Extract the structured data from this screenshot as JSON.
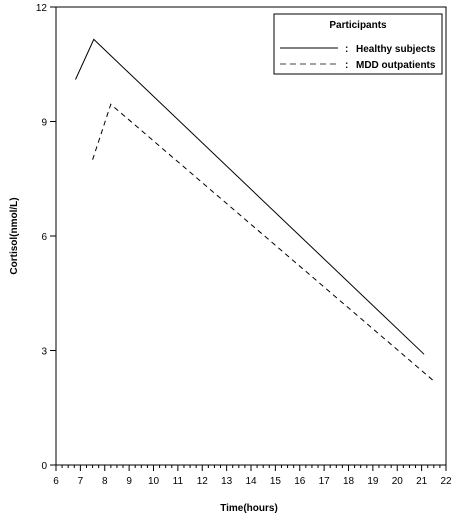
{
  "chart_data": {
    "type": "line",
    "xlabel": "Time(hours)",
    "ylabel": "Cortisol(nmol/L)",
    "xlim": [
      6,
      22
    ],
    "ylim": [
      0,
      12
    ],
    "x_ticks": [
      6,
      7,
      8,
      9,
      10,
      11,
      12,
      13,
      14,
      15,
      16,
      17,
      18,
      19,
      20,
      21,
      22
    ],
    "y_ticks": [
      0,
      3,
      6,
      9,
      12
    ],
    "x_minor_step": 0.25,
    "grid": false,
    "legend": {
      "title": "Participants",
      "placement": "top-right",
      "prefix": ":"
    },
    "series": [
      {
        "name": "Healthy subjects",
        "style": "solid",
        "color": "#000000",
        "x": [
          6.8,
          7.55,
          21.1
        ],
        "y": [
          10.1,
          11.15,
          2.9
        ]
      },
      {
        "name": "MDD outpatients",
        "style": "dashed",
        "color": "#000000",
        "x": [
          7.5,
          8.25,
          21.5
        ],
        "y": [
          8.0,
          9.45,
          2.2
        ]
      }
    ]
  }
}
